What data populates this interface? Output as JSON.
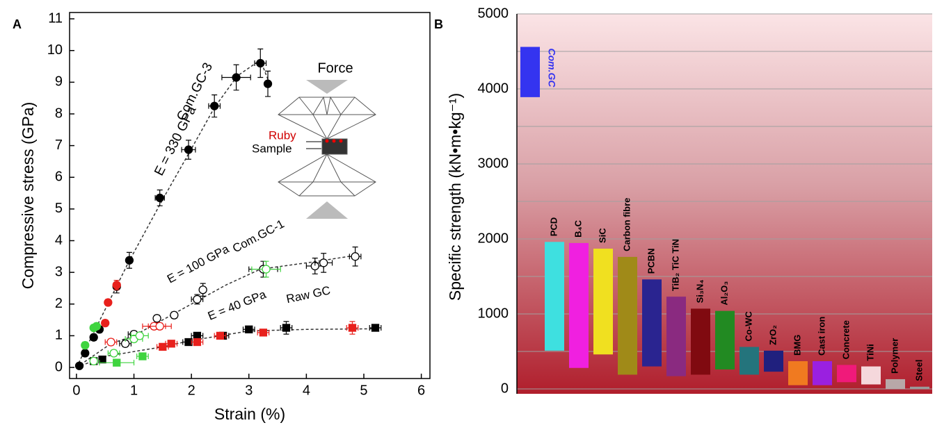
{
  "chart_data": [
    {
      "type": "scatter",
      "panel": "A",
      "xlabel": "Strain (%)",
      "ylabel": "Compressive stress (GPa)",
      "xlim": [
        -0.12,
        6.15
      ],
      "ylim": [
        -0.35,
        11.2
      ],
      "xticks": [
        0,
        1,
        2,
        3,
        4,
        5,
        6
      ],
      "yticks": [
        0,
        1,
        2,
        3,
        4,
        5,
        6,
        7,
        8,
        9,
        10,
        11
      ],
      "series": [
        {
          "color": "#000000",
          "marker": "circle",
          "filled": true,
          "x": [
            0.05,
            0.15,
            0.3,
            0.4,
            0.7,
            0.92,
            1.45,
            1.95,
            2.4,
            2.78,
            3.2,
            3.33
          ],
          "values": [
            0.05,
            0.45,
            0.95,
            1.2,
            2.55,
            3.38,
            5.35,
            6.87,
            8.25,
            9.15,
            9.6,
            8.95
          ],
          "xerr": [
            0.03,
            0.05,
            0.05,
            0.05,
            0.05,
            0.05,
            0.08,
            0.12,
            0.1,
            0.25,
            0.1,
            0.05
          ],
          "yerr": [
            0.05,
            0.1,
            0.1,
            0.1,
            0.2,
            0.25,
            0.25,
            0.3,
            0.35,
            0.4,
            0.45,
            0.4
          ]
        },
        {
          "color": "#000000",
          "marker": "circle",
          "filled": false,
          "x": [
            0.85,
            1.0,
            1.4,
            1.7,
            2.1,
            2.2,
            3.25,
            4.15,
            4.3,
            4.85
          ],
          "values": [
            0.75,
            1.05,
            1.55,
            1.65,
            2.15,
            2.45,
            3.1,
            3.2,
            3.3,
            3.5
          ],
          "xerr": [
            0.1,
            0.1,
            0.05,
            0.05,
            0.1,
            0.05,
            0.25,
            0.15,
            0.15,
            0.1
          ],
          "yerr": [
            0.1,
            0.1,
            0.1,
            0.1,
            0.15,
            0.2,
            0.25,
            0.25,
            0.3,
            0.3
          ]
        },
        {
          "color": "#000000",
          "marker": "square",
          "filled": true,
          "x": [
            0.3,
            0.45,
            1.95,
            2.1,
            2.55,
            3.0,
            3.65,
            5.2
          ],
          "values": [
            0.2,
            0.25,
            0.8,
            1.0,
            1.0,
            1.2,
            1.25,
            1.25
          ],
          "xerr": [
            0.05,
            0.05,
            0.1,
            0.1,
            0.1,
            0.1,
            0.1,
            0.1
          ],
          "yerr": [
            0.05,
            0.05,
            0.05,
            0.1,
            0.1,
            0.1,
            0.2,
            0.1
          ]
        },
        {
          "color": "#e8201c",
          "marker": "circle",
          "filled": true,
          "x": [
            0.5,
            0.55,
            0.7
          ],
          "values": [
            1.4,
            2.05,
            2.6
          ],
          "xerr": [
            0.05,
            0.05,
            0.05
          ],
          "yerr": [
            0.1,
            0.1,
            0.15
          ]
        },
        {
          "color": "#e8201c",
          "marker": "circle",
          "filled": false,
          "x": [
            0.6,
            1.35,
            1.45
          ],
          "values": [
            0.8,
            1.3,
            1.3
          ],
          "xerr": [
            0.1,
            0.2,
            0.2
          ],
          "yerr": [
            0.1,
            0.1,
            0.1
          ]
        },
        {
          "color": "#e8201c",
          "marker": "square",
          "filled": true,
          "x": [
            1.5,
            1.65,
            2.1,
            2.5,
            3.25,
            4.8
          ],
          "values": [
            0.65,
            0.75,
            0.8,
            1.0,
            1.1,
            1.25
          ],
          "xerr": [
            0.1,
            0.1,
            0.1,
            0.1,
            0.1,
            0.1
          ],
          "yerr": [
            0.05,
            0.05,
            0.05,
            0.05,
            0.1,
            0.2
          ]
        },
        {
          "color": "#3fd43f",
          "marker": "circle",
          "filled": true,
          "x": [
            0.15,
            0.3,
            0.35
          ],
          "values": [
            0.7,
            1.25,
            1.3
          ],
          "xerr": [
            0.05,
            0.05,
            0.05
          ],
          "yerr": [
            0.1,
            0.1,
            0.1
          ]
        },
        {
          "color": "#3fd43f",
          "marker": "circle",
          "filled": false,
          "x": [
            0.3,
            0.65,
            1.0,
            1.1,
            3.3
          ],
          "values": [
            0.2,
            0.45,
            0.9,
            1.0,
            3.1
          ],
          "xerr": [
            0.05,
            0.1,
            0.15,
            0.15,
            0.25
          ],
          "yerr": [
            0.05,
            0.1,
            0.1,
            0.1,
            0.25
          ]
        },
        {
          "color": "#3fd43f",
          "marker": "square",
          "filled": true,
          "x": [
            0.7,
            1.15
          ],
          "values": [
            0.15,
            0.35
          ],
          "xerr": [
            0.3,
            0.1
          ],
          "yerr": [
            0.05,
            0.05
          ]
        }
      ],
      "fits": [
        {
          "x": [
            0,
            0.9,
            1.5,
            2.0,
            2.4,
            2.8,
            3.2,
            3.35
          ],
          "values": [
            0,
            3.3,
            5.3,
            6.9,
            8.2,
            9.2,
            9.7,
            9.0
          ]
        },
        {
          "x": [
            0,
            0.6,
            1.0,
            1.4,
            2.1,
            2.6,
            3.2,
            4.2,
            4.9
          ],
          "values": [
            0,
            0.75,
            1.0,
            1.4,
            2.1,
            2.6,
            3.1,
            3.35,
            3.55
          ]
        },
        {
          "x": [
            0,
            0.5,
            1.5,
            2.0,
            2.5,
            3.0,
            4.0,
            5.2
          ],
          "values": [
            0,
            0.35,
            0.65,
            0.85,
            1.0,
            1.15,
            1.2,
            1.22
          ]
        }
      ],
      "annotations": [
        "E = 330 GPa",
        "Com.GC-3",
        "E = 100 GPa",
        "Com.GC-1",
        "E = 40 GPa",
        "Raw GC",
        "Force",
        "Ruby",
        "Sample"
      ]
    },
    {
      "type": "floating-bar",
      "panel": "B",
      "ylabel": "Specific strength (kN•m•kg⁻¹)",
      "ylim": [
        -65,
        5000
      ],
      "yticks": [
        0,
        1000,
        2000,
        3000,
        4000,
        5000
      ],
      "minor_yticks": [
        500,
        1500,
        2500,
        3500,
        4500
      ],
      "grid": true,
      "categories": [
        "Com.GC",
        "PCD",
        "B₄C",
        "SiC",
        "Carbon fibre",
        "PCBN",
        "TiB₂ TiC TiN",
        "Si₃N₄",
        "Al₂O₃",
        "Co-WC",
        "ZrO₂",
        "BMG",
        "Cast iron",
        "Concrete",
        "TiNi",
        "Polymer",
        "Steel"
      ],
      "values": [
        [
          3890,
          4560
        ],
        [
          510,
          1960
        ],
        [
          280,
          1945
        ],
        [
          460,
          1870
        ],
        [
          190,
          1760
        ],
        [
          300,
          1460
        ],
        [
          170,
          1230
        ],
        [
          190,
          1070
        ],
        [
          260,
          1040
        ],
        [
          190,
          560
        ],
        [
          230,
          510
        ],
        [
          50,
          370
        ],
        [
          50,
          370
        ],
        [
          90,
          320
        ],
        [
          60,
          300
        ],
        [
          0,
          130
        ],
        [
          0,
          30
        ]
      ],
      "colors": [
        "#3434f0",
        "#3ee0e0",
        "#f020e0",
        "#f0e020",
        "#a08a18",
        "#2a2490",
        "#8a2a80",
        "#800a10",
        "#228a22",
        "#24747c",
        "#20207e",
        "#f07a20",
        "#9a20e0",
        "#f01a7a",
        "#f5d8dc",
        "#b8a8a8",
        "#9a9a9a"
      ]
    }
  ]
}
